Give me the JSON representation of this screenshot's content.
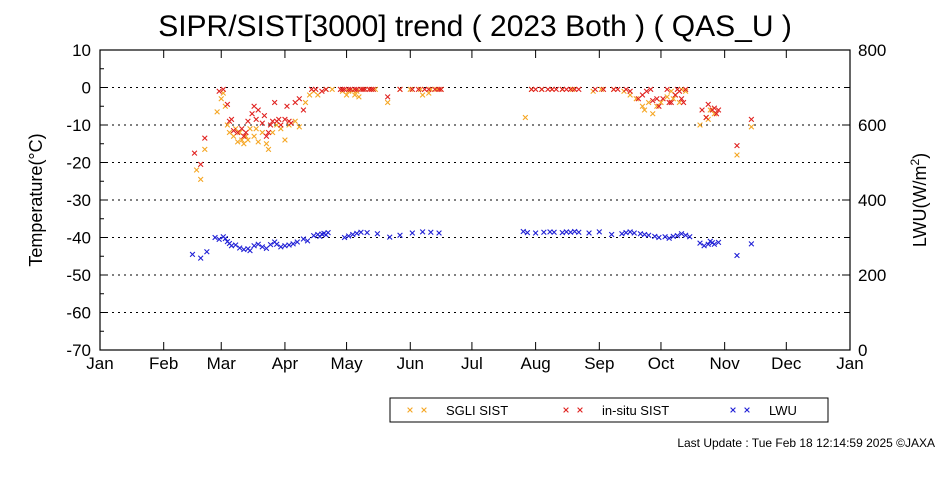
{
  "chart_data": {
    "type": "scatter",
    "title": "SIPR/SIST[3000] trend ( 2023 Both ) ( QAS_U )",
    "xlabel": "",
    "ylabel_left": "Temperature(°C)",
    "ylabel_right_base": "LWU(W/m",
    "ylabel_right_sup": "2",
    "ylabel_right_end": ")",
    "x_tick_labels": [
      "Jan",
      "Feb",
      "Mar",
      "Apr",
      "May",
      "Jun",
      "Jul",
      "Aug",
      "Sep",
      "Oct",
      "Nov",
      "Dec",
      "Jan"
    ],
    "x_unit": "day of year 2023 (Jan 1 = 0)",
    "xlim": [
      0,
      365
    ],
    "ylim_left": [
      -70,
      10
    ],
    "ylim_right": [
      0,
      800
    ],
    "y_ticks_left": [
      "10",
      "0",
      "-10",
      "-20",
      "-30",
      "-40",
      "-50",
      "-60",
      "-70"
    ],
    "y_ticks_right": [
      "800",
      "600",
      "400",
      "200",
      "0"
    ],
    "grid": "dotted horizontal at major left ticks",
    "legend_position": "bottom-right",
    "series": [
      {
        "name": "SGLI SIST",
        "axis": "left",
        "color": "#f5a623",
        "marker": "x",
        "points": [
          [
            47,
            -22
          ],
          [
            49,
            -24.5
          ],
          [
            51,
            -16.5
          ],
          [
            57,
            -6.5
          ],
          [
            59,
            -3
          ],
          [
            60,
            -1.5
          ],
          [
            61,
            -5
          ],
          [
            62,
            -10
          ],
          [
            63,
            -12
          ],
          [
            65,
            -13
          ],
          [
            66,
            -11
          ],
          [
            67,
            -14.5
          ],
          [
            68,
            -12
          ],
          [
            69,
            -14
          ],
          [
            70,
            -15
          ],
          [
            71,
            -13
          ],
          [
            72,
            -14
          ],
          [
            73,
            -11
          ],
          [
            75,
            -13
          ],
          [
            76,
            -11
          ],
          [
            77,
            -14.5
          ],
          [
            79,
            -12
          ],
          [
            81,
            -15
          ],
          [
            82,
            -16.5
          ],
          [
            84,
            -12
          ],
          [
            86,
            -10
          ],
          [
            88,
            -11
          ],
          [
            90,
            -14
          ],
          [
            92,
            -10
          ],
          [
            95,
            -9
          ],
          [
            97,
            -10.5
          ],
          [
            100,
            -4
          ],
          [
            102,
            -2
          ],
          [
            104,
            -1
          ],
          [
            106,
            -2
          ],
          [
            110,
            -0.5
          ],
          [
            113,
            -0.5
          ],
          [
            118,
            -1
          ],
          [
            120,
            -2
          ],
          [
            121,
            -1
          ],
          [
            123,
            -0.8
          ],
          [
            124,
            -2
          ],
          [
            125,
            -1
          ],
          [
            126,
            -2.5
          ],
          [
            128,
            -0.5
          ],
          [
            131,
            -0.5
          ],
          [
            134,
            -0.5
          ],
          [
            140,
            -4
          ],
          [
            146,
            -0.5
          ],
          [
            151,
            -0.5
          ],
          [
            156,
            -0.5
          ],
          [
            157,
            -2
          ],
          [
            160,
            -1.5
          ],
          [
            161,
            -0.5
          ],
          [
            164,
            -0.5
          ],
          [
            166,
            -0.5
          ],
          [
            207,
            -8
          ],
          [
            210,
            -0.5
          ],
          [
            215,
            -0.5
          ],
          [
            220,
            -0.5
          ],
          [
            225,
            -0.5
          ],
          [
            230,
            -0.5
          ],
          [
            240,
            -1
          ],
          [
            244,
            -0.5
          ],
          [
            250,
            -0.5
          ],
          [
            255,
            -1
          ],
          [
            258,
            -2
          ],
          [
            261,
            -3
          ],
          [
            264,
            -5
          ],
          [
            265,
            -6
          ],
          [
            267,
            -4
          ],
          [
            269,
            -7
          ],
          [
            271,
            -5
          ],
          [
            273,
            -4
          ],
          [
            276,
            -2.5
          ],
          [
            278,
            -1
          ],
          [
            279,
            -3
          ],
          [
            280,
            -2
          ],
          [
            282,
            -4
          ],
          [
            283,
            -0.5
          ],
          [
            285,
            -1
          ],
          [
            292,
            -10
          ],
          [
            295,
            -8
          ],
          [
            296,
            -8.5
          ],
          [
            297,
            -6
          ],
          [
            299,
            -7
          ],
          [
            310,
            -18
          ],
          [
            317,
            -10.5
          ]
        ]
      },
      {
        "name": "in-situ SIST",
        "axis": "left",
        "color": "#e0211f",
        "marker": "x",
        "points": [
          [
            46,
            -17.5
          ],
          [
            49,
            -20.5
          ],
          [
            51,
            -13.5
          ],
          [
            58,
            -1
          ],
          [
            60,
            -0.5
          ],
          [
            62,
            -4.5
          ],
          [
            63,
            -9
          ],
          [
            64,
            -8.5
          ],
          [
            65,
            -11.5
          ],
          [
            67,
            -12
          ],
          [
            69,
            -11
          ],
          [
            70,
            -13
          ],
          [
            71,
            -12
          ],
          [
            72,
            -9
          ],
          [
            74,
            -7
          ],
          [
            75,
            -5
          ],
          [
            76,
            -8.5
          ],
          [
            77,
            -6
          ],
          [
            79,
            -9.5
          ],
          [
            80,
            -7.5
          ],
          [
            81,
            -13
          ],
          [
            82,
            -12
          ],
          [
            83,
            -10
          ],
          [
            84,
            -9
          ],
          [
            85,
            -4
          ],
          [
            86,
            -9
          ],
          [
            87,
            -8.5
          ],
          [
            88,
            -10
          ],
          [
            90,
            -8.5
          ],
          [
            91,
            -5
          ],
          [
            92,
            -9
          ],
          [
            93,
            -9.5
          ],
          [
            95,
            -4
          ],
          [
            97,
            -3
          ],
          [
            99,
            -6
          ],
          [
            103,
            -0.5
          ],
          [
            105,
            -0.5
          ],
          [
            108,
            -1
          ],
          [
            110,
            -0.5
          ],
          [
            117,
            -0.5
          ],
          [
            118,
            -0.5
          ],
          [
            119,
            -0.5
          ],
          [
            121,
            -0.5
          ],
          [
            122,
            -0.5
          ],
          [
            124,
            -0.5
          ],
          [
            125,
            -0.5
          ],
          [
            127,
            -0.5
          ],
          [
            128,
            -0.5
          ],
          [
            129,
            -0.5
          ],
          [
            131,
            -0.5
          ],
          [
            132,
            -0.5
          ],
          [
            133,
            -0.5
          ],
          [
            140,
            -2.5
          ],
          [
            146,
            -0.5
          ],
          [
            152,
            -0.5
          ],
          [
            155,
            -0.5
          ],
          [
            158,
            -0.5
          ],
          [
            160,
            -0.5
          ],
          [
            163,
            -0.5
          ],
          [
            165,
            -0.5
          ],
          [
            166,
            -0.5
          ],
          [
            210,
            -0.5
          ],
          [
            212,
            -0.5
          ],
          [
            215,
            -0.5
          ],
          [
            218,
            -0.5
          ],
          [
            220,
            -0.5
          ],
          [
            222,
            -0.5
          ],
          [
            225,
            -0.5
          ],
          [
            227,
            -0.5
          ],
          [
            229,
            -0.5
          ],
          [
            231,
            -0.5
          ],
          [
            233,
            -0.5
          ],
          [
            241,
            -0.5
          ],
          [
            245,
            -0.5
          ],
          [
            250,
            -0.5
          ],
          [
            252,
            -0.5
          ],
          [
            256,
            -0.5
          ],
          [
            258,
            -1
          ],
          [
            262,
            -3
          ],
          [
            264,
            -2
          ],
          [
            266,
            -1
          ],
          [
            268,
            -0.5
          ],
          [
            269,
            -3.5
          ],
          [
            271,
            -3
          ],
          [
            272,
            -5
          ],
          [
            274,
            -3
          ],
          [
            276,
            -0.5
          ],
          [
            277,
            -4
          ],
          [
            278,
            -4
          ],
          [
            280,
            -2
          ],
          [
            281,
            -0.5
          ],
          [
            282,
            -1
          ],
          [
            283,
            -3
          ],
          [
            284,
            -4
          ],
          [
            285,
            -0.5
          ],
          [
            293,
            -6
          ],
          [
            295,
            -8
          ],
          [
            296,
            -4.5
          ],
          [
            298,
            -6
          ],
          [
            299,
            -5.5
          ],
          [
            300,
            -7
          ],
          [
            301,
            -6
          ],
          [
            310,
            -15.5
          ],
          [
            317,
            -8.5
          ]
        ]
      },
      {
        "name": "LWU",
        "axis": "right",
        "color": "#1f1fd6",
        "marker": "x",
        "points": [
          [
            45,
            255
          ],
          [
            49,
            245
          ],
          [
            52,
            262
          ],
          [
            56,
            300
          ],
          [
            58,
            295
          ],
          [
            60,
            302
          ],
          [
            61,
            297
          ],
          [
            62,
            289
          ],
          [
            63,
            284
          ],
          [
            64,
            278
          ],
          [
            66,
            280
          ],
          [
            68,
            272
          ],
          [
            70,
            268
          ],
          [
            72,
            270
          ],
          [
            73,
            265
          ],
          [
            75,
            278
          ],
          [
            77,
            282
          ],
          [
            79,
            275
          ],
          [
            81,
            271
          ],
          [
            83,
            281
          ],
          [
            85,
            288
          ],
          [
            86,
            282
          ],
          [
            88,
            275
          ],
          [
            90,
            278
          ],
          [
            92,
            280
          ],
          [
            94,
            283
          ],
          [
            96,
            288
          ],
          [
            99,
            296
          ],
          [
            101,
            291
          ],
          [
            104,
            305
          ],
          [
            106,
            308
          ],
          [
            107,
            303
          ],
          [
            108,
            309
          ],
          [
            109,
            311
          ],
          [
            110,
            307
          ],
          [
            111,
            313
          ],
          [
            119,
            300
          ],
          [
            121,
            304
          ],
          [
            123,
            308
          ],
          [
            125,
            311
          ],
          [
            127,
            314
          ],
          [
            130,
            313
          ],
          [
            135,
            310
          ],
          [
            141,
            301
          ],
          [
            146,
            306
          ],
          [
            152,
            312
          ],
          [
            157,
            315
          ],
          [
            161,
            314
          ],
          [
            165,
            312
          ],
          [
            206,
            316
          ],
          [
            208,
            313
          ],
          [
            212,
            312
          ],
          [
            216,
            314
          ],
          [
            219,
            315
          ],
          [
            221,
            314
          ],
          [
            225,
            313
          ],
          [
            227,
            315
          ],
          [
            229,
            314
          ],
          [
            231,
            316
          ],
          [
            233,
            314
          ],
          [
            238,
            312
          ],
          [
            243,
            315
          ],
          [
            249,
            308
          ],
          [
            254,
            310
          ],
          [
            256,
            313
          ],
          [
            258,
            315
          ],
          [
            260,
            312
          ],
          [
            263,
            310
          ],
          [
            265,
            308
          ],
          [
            267,
            306
          ],
          [
            270,
            303
          ],
          [
            272,
            300
          ],
          [
            275,
            302
          ],
          [
            277,
            298
          ],
          [
            279,
            303
          ],
          [
            281,
            305
          ],
          [
            283,
            310
          ],
          [
            285,
            306
          ],
          [
            287,
            302
          ],
          [
            292,
            285
          ],
          [
            294,
            278
          ],
          [
            296,
            282
          ],
          [
            297,
            290
          ],
          [
            298,
            286
          ],
          [
            299,
            282
          ],
          [
            301,
            287
          ],
          [
            310,
            252
          ],
          [
            317,
            283
          ]
        ]
      }
    ]
  },
  "footer": {
    "last_update": "Last Update : Tue Feb 18 12:14:59 2025  ©JAXA"
  }
}
